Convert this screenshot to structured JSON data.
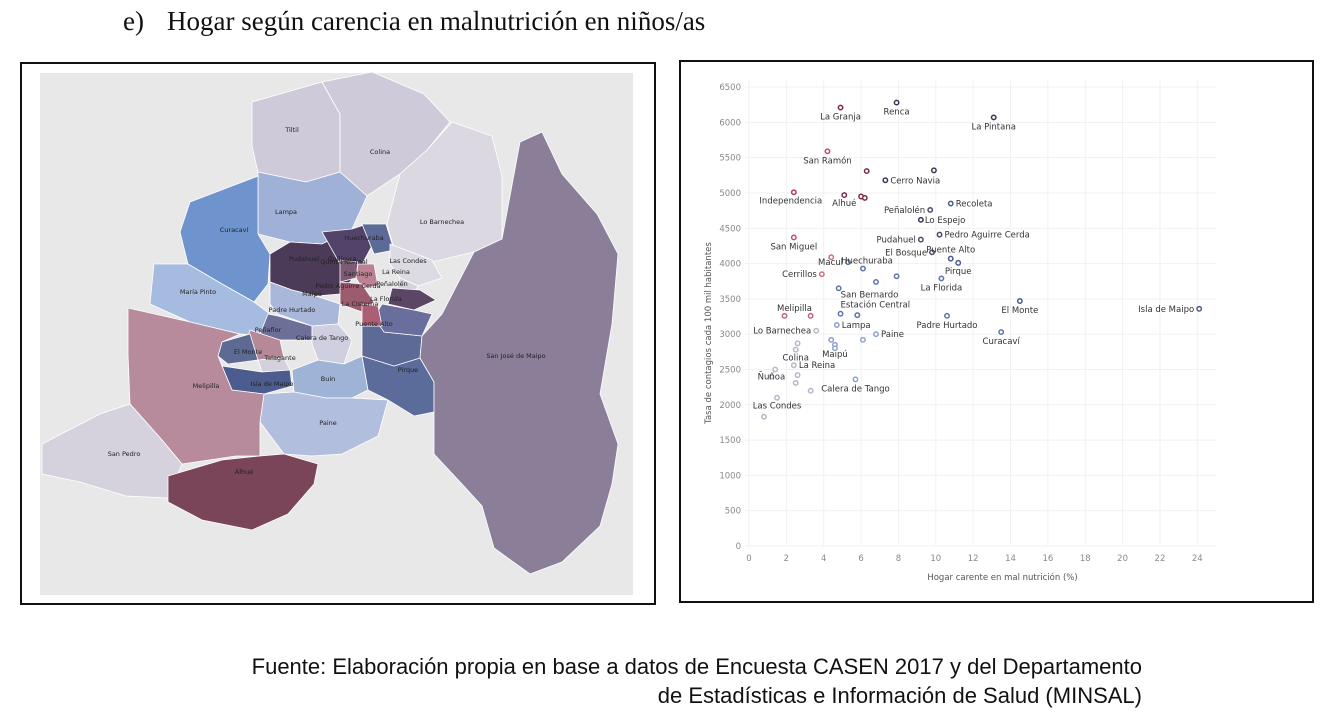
{
  "heading": {
    "number": "e)",
    "text": "Hogar según carencia en malnutrición en niños/as"
  },
  "map": {
    "communes": [
      {
        "name": "Tiltil",
        "color": "#cfcad9"
      },
      {
        "name": "Colina",
        "color": "#cfcad9"
      },
      {
        "name": "Lampa",
        "color": "#9fb1d6"
      },
      {
        "name": "Curacaví",
        "color": "#6f93cc"
      },
      {
        "name": "Lo Barnechea",
        "color": "#dcd8e2"
      },
      {
        "name": "María Pinto",
        "color": "#a6bbe0"
      },
      {
        "name": "Pudahuel",
        "color": "#4c3a59"
      },
      {
        "name": "Quilicura",
        "color": "#52436a"
      },
      {
        "name": "Huechuraba",
        "color": "#5c6a98"
      },
      {
        "name": "Maipú",
        "color": "#a9b8da"
      },
      {
        "name": "Padre Hurtado",
        "color": "#6d6f98"
      },
      {
        "name": "Peñaflor",
        "color": "#b68998"
      },
      {
        "name": "El Monte",
        "color": "#5d6b94"
      },
      {
        "name": "Talagante",
        "color": "#d4d0dc"
      },
      {
        "name": "Isla de Maipo",
        "color": "#4d5c8e"
      },
      {
        "name": "Calera de Tango",
        "color": "#cfcfe0"
      },
      {
        "name": "Buin",
        "color": "#9fb3d6"
      },
      {
        "name": "Paine",
        "color": "#b1bedd"
      },
      {
        "name": "Pirque",
        "color": "#5b6b9a"
      },
      {
        "name": "Puente Alto",
        "color": "#5d6a96"
      },
      {
        "name": "La Florida",
        "color": "#6a6e9c"
      },
      {
        "name": "Las Condes",
        "color": "#dcdbe3"
      },
      {
        "name": "Santiago",
        "color": "#bb8294"
      },
      {
        "name": "La Reina",
        "color": "#d3d2de"
      },
      {
        "name": "Peñalolén",
        "color": "#5b4765"
      },
      {
        "name": "Quinta Normal",
        "color": "#7e5b74"
      },
      {
        "name": "Pedro Aguirre Cerda",
        "color": "#9d5b70"
      },
      {
        "name": "La Cisterna",
        "color": "#aa5f74"
      },
      {
        "name": "Melipilla",
        "color": "#b78b9b"
      },
      {
        "name": "San Pedro",
        "color": "#d5d2dd"
      },
      {
        "name": "Alhué",
        "color": "#7a4459"
      },
      {
        "name": "San José de Maipo",
        "color": "#8a7e99"
      }
    ]
  },
  "chart_data": {
    "type": "scatter",
    "xlabel": "Hogar carente en mal nutrición (%)",
    "ylabel": "Tasa de contagios cada 100 mil habitantes",
    "xlim": [
      0,
      25
    ],
    "ylim": [
      0,
      6600
    ],
    "x_ticks": [
      "0",
      "2",
      "4",
      "6",
      "8",
      "10",
      "12",
      "14",
      "16",
      "18",
      "20",
      "22",
      "24"
    ],
    "y_ticks": [
      "0",
      "500",
      "1000",
      "1500",
      "2000",
      "2500",
      "3000",
      "3500",
      "4000",
      "4500",
      "5000",
      "5500",
      "6000",
      "6500"
    ],
    "grid": true,
    "points": [
      {
        "label": "La Granja",
        "x": 4.9,
        "y": 6210,
        "color": "#7a2c45"
      },
      {
        "label": "Renca",
        "x": 7.9,
        "y": 6280,
        "color": "#3e3452"
      },
      {
        "label": "La Pintana",
        "x": 13.1,
        "y": 6070,
        "color": "#3e3452"
      },
      {
        "label": "San Ramón",
        "x": 4.2,
        "y": 5590,
        "color": "#c64a64"
      },
      {
        "label": "",
        "x": 6.3,
        "y": 5310,
        "color": "#7a2c45"
      },
      {
        "label": "",
        "x": 9.9,
        "y": 5320,
        "color": "#3e3452"
      },
      {
        "label": "Cerro Navia",
        "x": 7.3,
        "y": 5180,
        "color": "#3e3452"
      },
      {
        "label": "Independencia",
        "x": 2.4,
        "y": 5010,
        "color": "#b03a5a"
      },
      {
        "label": "Alhué",
        "x": 5.1,
        "y": 4970,
        "color": "#7a2c45"
      },
      {
        "label": "",
        "x": 6.0,
        "y": 4950,
        "color": "#7a2c45"
      },
      {
        "label": "",
        "x": 6.2,
        "y": 4930,
        "color": "#7a2c45"
      },
      {
        "label": "Recoleta",
        "x": 10.8,
        "y": 4850,
        "color": "#4a5a8c"
      },
      {
        "label": "Peñalolén",
        "x": 9.7,
        "y": 4760,
        "color": "#4a4a68"
      },
      {
        "label": "Lo Espejo",
        "x": 9.2,
        "y": 4620,
        "color": "#3e3452"
      },
      {
        "label": "Pedro Aguirre Cerda",
        "x": 10.2,
        "y": 4410,
        "color": "#4a4a68"
      },
      {
        "label": "San Miguel",
        "x": 2.4,
        "y": 4370,
        "color": "#c64a64"
      },
      {
        "label": "Pudahuel",
        "x": 9.2,
        "y": 4340,
        "color": "#4a4a68"
      },
      {
        "label": "El Bosque",
        "x": 9.8,
        "y": 4160,
        "color": "#4a4a68"
      },
      {
        "label": "Puente Alto",
        "x": 10.8,
        "y": 4070,
        "color": "#4a5a8c"
      },
      {
        "label": "",
        "x": 4.4,
        "y": 4090,
        "color": "#d07080"
      },
      {
        "label": "Macul",
        "x": 5.3,
        "y": 4020,
        "color": "#5f73a8"
      },
      {
        "label": "Pirque",
        "x": 11.2,
        "y": 4010,
        "color": "#4a5a8c"
      },
      {
        "label": "Huechuraba",
        "x": 6.1,
        "y": 3930,
        "color": "#5f73a8"
      },
      {
        "label": "Cerrillos",
        "x": 3.9,
        "y": 3850,
        "color": "#d07080"
      },
      {
        "label": "",
        "x": 7.9,
        "y": 3820,
        "color": "#5f73a8"
      },
      {
        "label": "La Florida",
        "x": 10.3,
        "y": 3790,
        "color": "#5f73a8"
      },
      {
        "label": "",
        "x": 6.8,
        "y": 3740,
        "color": "#5f73a8"
      },
      {
        "label": "San Bernardo",
        "x": 4.8,
        "y": 3650,
        "color": "#5f73a8"
      },
      {
        "label": "El Monte",
        "x": 14.5,
        "y": 3470,
        "color": "#4a5a8c"
      },
      {
        "label": "Isla de Maipo",
        "x": 24.1,
        "y": 3360,
        "color": "#4a5a8c"
      },
      {
        "label": "Estación Central",
        "x": 4.9,
        "y": 3290,
        "color": "#5f73a8"
      },
      {
        "label": "Melipilla",
        "x": 1.9,
        "y": 3260,
        "color": "#c06078"
      },
      {
        "label": "",
        "x": 3.3,
        "y": 3260,
        "color": "#c06078"
      },
      {
        "label": "",
        "x": 5.8,
        "y": 3270,
        "color": "#5f73a8"
      },
      {
        "label": "Padre Hurtado",
        "x": 10.6,
        "y": 3260,
        "color": "#5f73a8"
      },
      {
        "label": "Lampa",
        "x": 4.7,
        "y": 3130,
        "color": "#8da0cc"
      },
      {
        "label": "Lo Barnechea",
        "x": 3.6,
        "y": 3050,
        "color": "#b8b6c8"
      },
      {
        "label": "Paine",
        "x": 6.8,
        "y": 3000,
        "color": "#8da0cc"
      },
      {
        "label": "Curacaví",
        "x": 13.5,
        "y": 3030,
        "color": "#5f73a8"
      },
      {
        "label": "",
        "x": 4.4,
        "y": 2920,
        "color": "#8da0cc"
      },
      {
        "label": "",
        "x": 6.1,
        "y": 2920,
        "color": "#8da0cc"
      },
      {
        "label": "",
        "x": 2.6,
        "y": 2870,
        "color": "#b8b6c8"
      },
      {
        "label": "Maipú",
        "x": 4.6,
        "y": 2850,
        "color": "#8da0cc"
      },
      {
        "label": "",
        "x": 4.6,
        "y": 2800,
        "color": "#8da0cc"
      },
      {
        "label": "Colina",
        "x": 2.5,
        "y": 2780,
        "color": "#b8b6c8"
      },
      {
        "label": "La Reina",
        "x": 2.4,
        "y": 2560,
        "color": "#b8b6c8"
      },
      {
        "label": "",
        "x": 1.4,
        "y": 2500,
        "color": "#b8b6c8"
      },
      {
        "label": "Ñuñoa",
        "x": 1.2,
        "y": 2400,
        "color": "#b8b6c8"
      },
      {
        "label": "",
        "x": 2.6,
        "y": 2420,
        "color": "#b8b6c8"
      },
      {
        "label": "Calera de Tango",
        "x": 5.7,
        "y": 2360,
        "color": "#8da0cc"
      },
      {
        "label": "",
        "x": 2.5,
        "y": 2310,
        "color": "#b8b6c8"
      },
      {
        "label": "",
        "x": 3.3,
        "y": 2200,
        "color": "#b8b6c8"
      },
      {
        "label": "Las Condes",
        "x": 1.5,
        "y": 2100,
        "color": "#b8b6c8"
      },
      {
        "label": "",
        "x": 0.8,
        "y": 1830,
        "color": "#b8b6c8"
      }
    ]
  },
  "source": {
    "line1": "Fuente: Elaboración propia en base a datos de Encuesta CASEN 2017 y del Departamento",
    "line2": "de Estadísticas e Información de Salud (MINSAL)"
  }
}
